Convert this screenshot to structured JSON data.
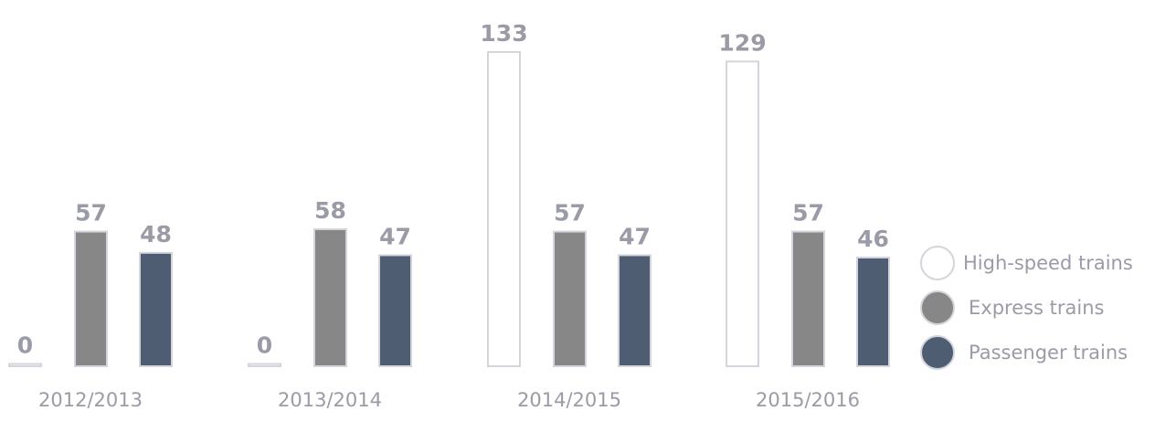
{
  "chart_data": {
    "type": "bar",
    "title": "",
    "xlabel": "",
    "ylabel": "",
    "categories": [
      "2012/2013",
      "2013/2014",
      "2014/2015",
      "2015/2016"
    ],
    "series": [
      {
        "name": "High-speed trains",
        "values": [
          0,
          0,
          133,
          129
        ],
        "color": "#ffffff",
        "stroke": "#d4d4dc"
      },
      {
        "name": "Express trains",
        "values": [
          57,
          58,
          57,
          57
        ],
        "color": "#878787",
        "stroke": "#d4d4dc"
      },
      {
        "name": "Passenger trains",
        "values": [
          48,
          47,
          47,
          46
        ],
        "color": "#4e5d71",
        "stroke": "#d4d4dc"
      }
    ],
    "ylim": [
      0,
      133
    ],
    "grid": false,
    "legend_position": "right",
    "label_color": "#9a9ba6"
  }
}
